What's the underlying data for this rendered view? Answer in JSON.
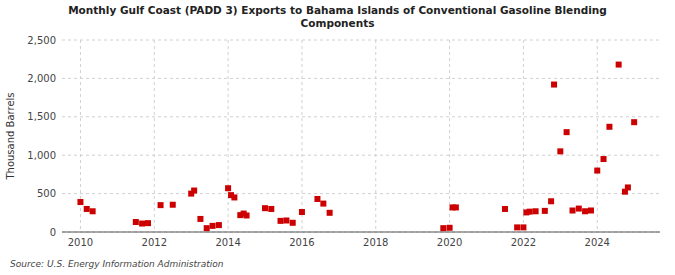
{
  "chart_data": {
    "type": "scatter",
    "title": "Monthly Gulf Coast (PADD 3) Exports to Bahama Islands of Conventional Gasoline Blending\nComponents",
    "ylabel": "Thousand Barrels",
    "annotations": [
      "Source: U.S. Energy Information Administration"
    ],
    "color": "#cc0000",
    "marker": "square",
    "grid": true,
    "xlim": [
      2009.5,
      2025.7
    ],
    "ylim": [
      0,
      2500
    ],
    "xticks": [
      2010,
      2012,
      2014,
      2016,
      2018,
      2020,
      2022,
      2024
    ],
    "yticks": [
      0,
      500,
      {
        "value": 1000,
        "label": "1,000"
      },
      {
        "value": 1500,
        "label": "1,500"
      },
      {
        "value": 2000,
        "label": "2,000"
      },
      {
        "value": 2500,
        "label": "2,500"
      }
    ],
    "x": [
      2010.0,
      2010.17,
      2010.33,
      2011.5,
      2011.67,
      2011.83,
      2012.17,
      2012.5,
      2013.0,
      2013.08,
      2013.25,
      2013.42,
      2013.58,
      2013.75,
      2014.0,
      2014.08,
      2014.17,
      2014.33,
      2014.42,
      2014.5,
      2015.0,
      2015.17,
      2015.42,
      2015.58,
      2015.75,
      2016.0,
      2016.42,
      2016.58,
      2016.75,
      2019.83,
      2020.0,
      2020.08,
      2020.17,
      2021.5,
      2021.83,
      2022.0,
      2022.08,
      2022.17,
      2022.33,
      2022.58,
      2022.75,
      2022.83,
      2023.0,
      2023.17,
      2023.33,
      2023.5,
      2023.67,
      2023.83,
      2024.0,
      2024.17,
      2024.33,
      2024.58,
      2024.75,
      2024.83,
      2025.0
    ],
    "values": [
      390,
      300,
      270,
      130,
      110,
      115,
      350,
      355,
      500,
      540,
      170,
      50,
      80,
      90,
      570,
      480,
      450,
      220,
      240,
      215,
      310,
      300,
      145,
      150,
      120,
      260,
      430,
      370,
      250,
      50,
      55,
      320,
      320,
      300,
      60,
      60,
      255,
      265,
      270,
      275,
      400,
      1920,
      1050,
      1300,
      280,
      305,
      270,
      280,
      800,
      950,
      1370,
      2180,
      525,
      580,
      1430
    ]
  }
}
